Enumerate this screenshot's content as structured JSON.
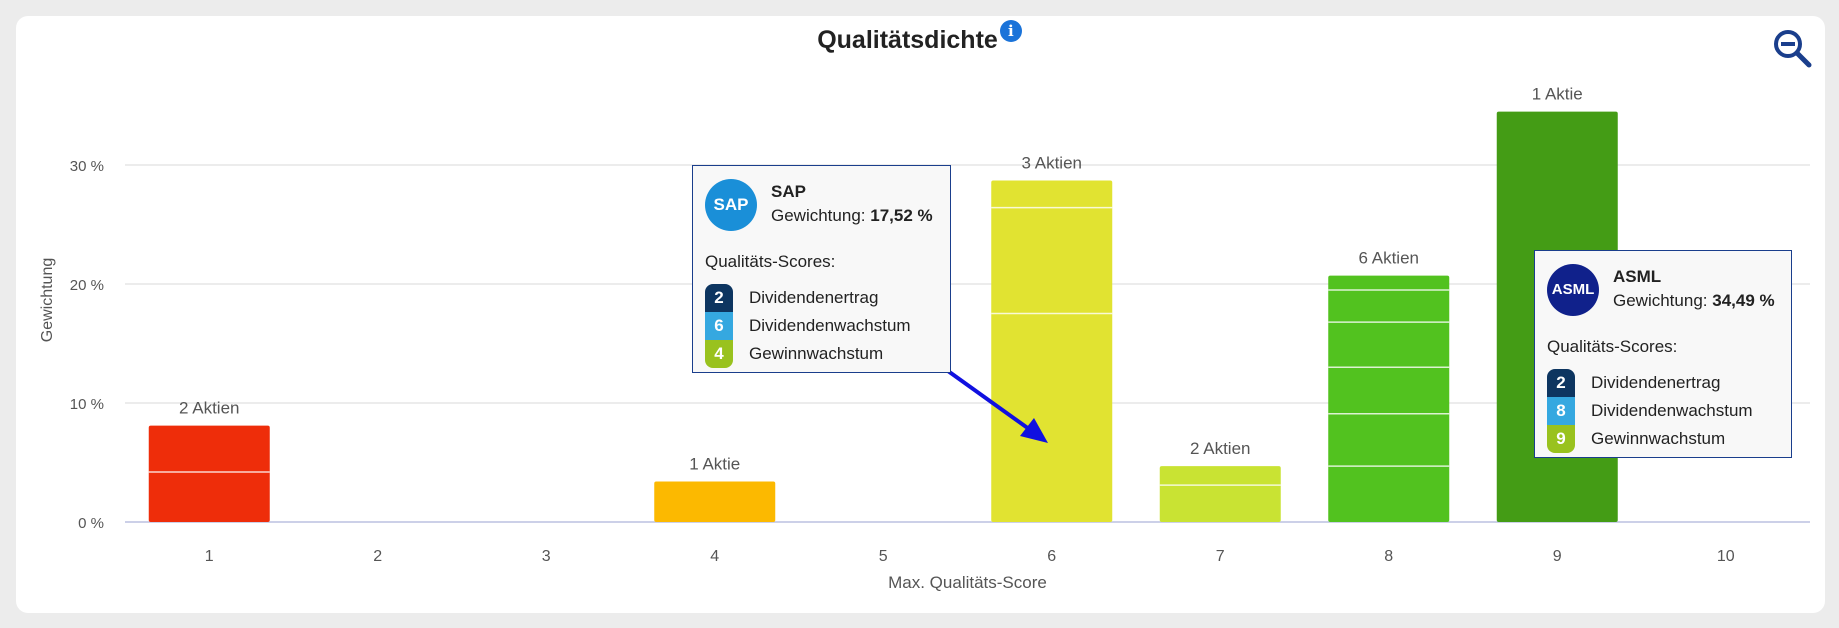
{
  "colors": {
    "score1": "#ee2d0a",
    "score4": "#fcb900",
    "score6": "#e1e331",
    "score7": "#c9e333",
    "score8": "#52c21f",
    "score9": "#449c15",
    "badge_dividendenertrag": "#0d3560",
    "badge_dividendenwachstum": "#35a8e0",
    "badge_gewinnwachstum": "#99c21e"
  },
  "chart_data": {
    "type": "bar",
    "stacked": true,
    "title": "Qualitätsdichte",
    "xlabel": "Max. Qualitäts-Score",
    "ylabel": "Gewichtung",
    "ylim": [
      0,
      36
    ],
    "yticks": [
      "0 %",
      "10 %",
      "20 %",
      "30 %"
    ],
    "ytick_values": [
      0,
      10,
      20,
      30
    ],
    "categories": [
      "1",
      "2",
      "3",
      "4",
      "5",
      "6",
      "7",
      "8",
      "9",
      "10"
    ],
    "values": [
      8.1,
      0,
      0,
      3.4,
      0,
      28.7,
      4.7,
      20.7,
      34.49,
      0
    ],
    "segments": [
      [
        4.2,
        3.9
      ],
      [],
      [],
      [
        3.4
      ],
      [],
      [
        17.52,
        8.9,
        2.3
      ],
      [
        3.1,
        1.6
      ],
      [
        4.7,
        4.4,
        3.9,
        3.8,
        2.7,
        1.2
      ],
      [
        34.49
      ],
      []
    ],
    "data_labels": [
      "2 Aktien",
      "",
      "",
      "1 Aktie",
      "",
      "3 Aktien",
      "2 Aktien",
      "6 Aktien",
      "1 Aktie",
      ""
    ],
    "grid": true
  },
  "tooltips": [
    {
      "name": "SAP",
      "logo_text": "SAP",
      "logo_color": "#1a8fd8",
      "weight_label": "Gewichtung:",
      "weight": "17,52 %",
      "scores_label": "Qualitäts-Scores:",
      "scores": [
        {
          "value": "2",
          "label": "Dividendenertrag"
        },
        {
          "value": "6",
          "label": "Dividendenwachstum"
        },
        {
          "value": "4",
          "label": "Gewinnwachstum"
        }
      ]
    },
    {
      "name": "ASML",
      "logo_text": "ASML",
      "logo_color": "#10218b",
      "weight_label": "Gewichtung:",
      "weight": "34,49 %",
      "scores_label": "Qualitäts-Scores:",
      "scores": [
        {
          "value": "2",
          "label": "Dividendenertrag"
        },
        {
          "value": "8",
          "label": "Dividendenwachstum"
        },
        {
          "value": "9",
          "label": "Gewinnwachstum"
        }
      ]
    }
  ],
  "icons": {
    "info": "info-icon",
    "zoom": "zoom-out-icon"
  },
  "info_glyph": "i"
}
